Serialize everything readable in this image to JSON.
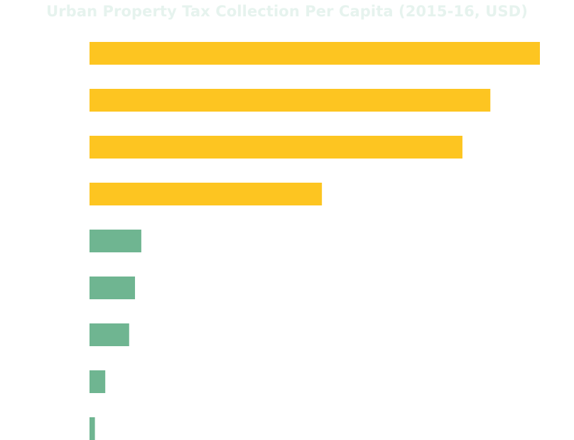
{
  "colors": {
    "title": "#e6f3ee",
    "highlight": "#fdc521",
    "base": "#6fb591"
  },
  "chart_data": {
    "type": "bar",
    "orientation": "horizontal",
    "title": "Urban Property Tax Collection Per Capita (2015-16, USD)",
    "xlabel": "",
    "ylabel": "",
    "grid": false,
    "legend": "none",
    "xlim": [
      0,
      100
    ],
    "categories": [
      "",
      "",
      "",
      "",
      "",
      "",
      "",
      "",
      ""
    ],
    "values": [
      100,
      89,
      82.8,
      51.6,
      11.5,
      10.1,
      8.8,
      3.5,
      1.2
    ],
    "bar_colors": [
      "highlight",
      "highlight",
      "highlight",
      "highlight",
      "base",
      "base",
      "base",
      "base",
      "base"
    ]
  }
}
